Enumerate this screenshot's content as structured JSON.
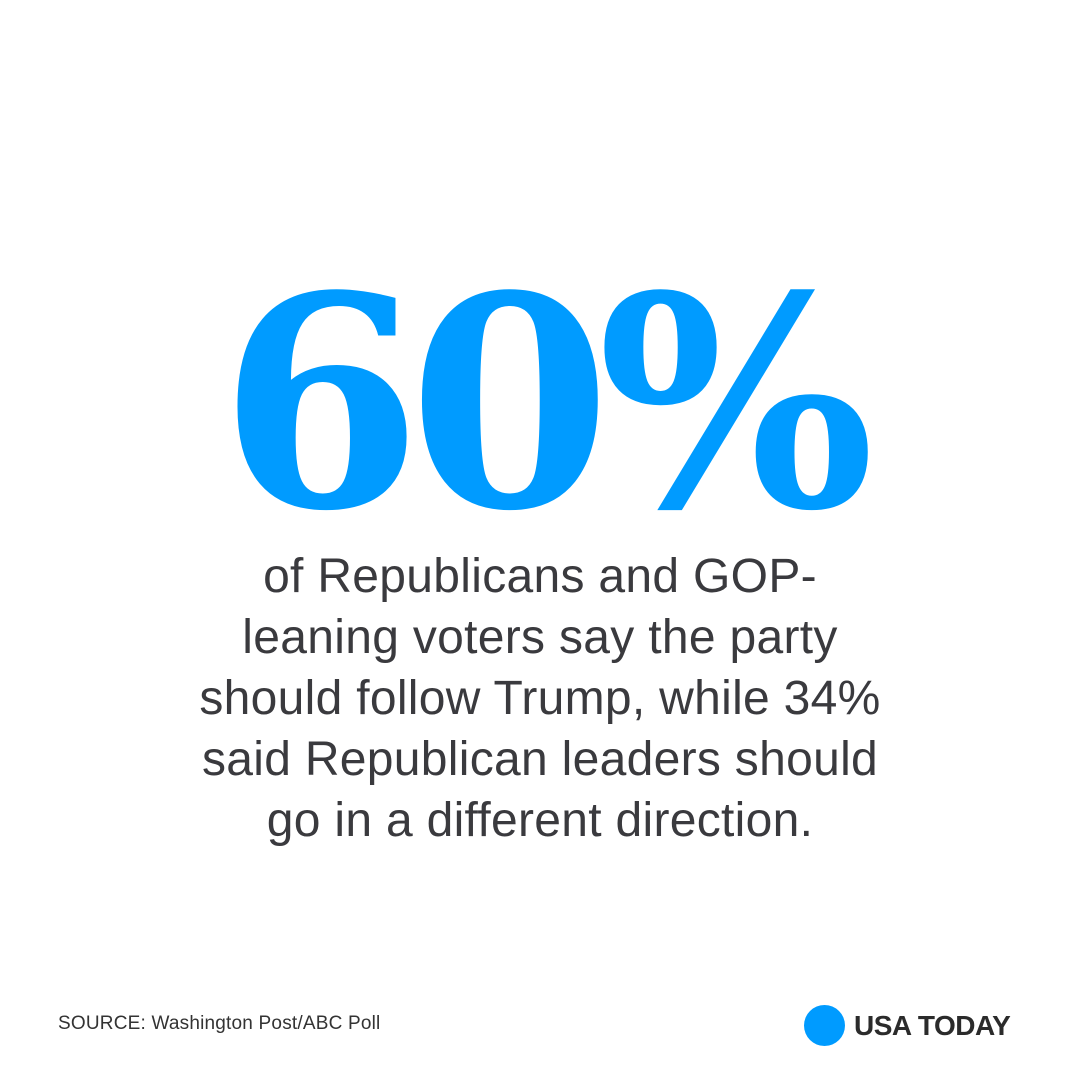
{
  "headline_stat": "60%",
  "statement_lines": [
    "of Republicans and GOP-",
    "leaning voters say the party",
    "should follow Trump, while 34%",
    "said Republican leaders should",
    "go in a different direction."
  ],
  "source": "SOURCE: Washington Post/ABC Poll",
  "brand": {
    "name": "USA TODAY",
    "logo_icon": "blue-circle-logo"
  },
  "colors": {
    "accent": "#009bff",
    "text": "#3a3a3e",
    "background": "#ffffff"
  }
}
